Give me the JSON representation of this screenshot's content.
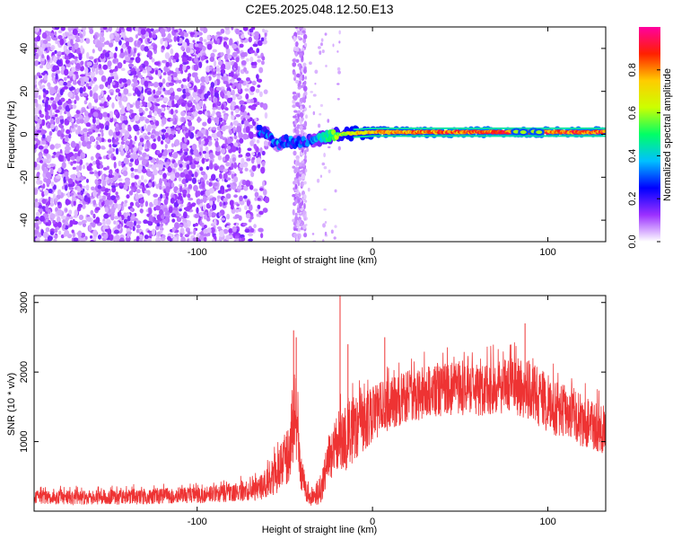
{
  "title": "C2E5.2025.048.12.50.E13",
  "chart_data": [
    {
      "type": "heatmap",
      "xlabel": "Height of straight line (km)",
      "ylabel": "Frequency (Hz)",
      "xlim": [
        -193,
        133
      ],
      "ylim": [
        -50,
        50
      ],
      "xticks": [
        -100,
        0,
        100
      ],
      "yticks": [
        -40,
        -20,
        0,
        20,
        40
      ],
      "colorbar": {
        "label": "Normalized spectral amplitude",
        "range": [
          0,
          1
        ],
        "ticks": [
          0.0,
          0.2,
          0.4,
          0.6,
          0.8
        ],
        "tick_labels": [
          "0.0",
          "0.2",
          "0.4",
          "0.6",
          "0.8"
        ],
        "colors": [
          "#ffffff",
          "#9b30ff",
          "#0000ff",
          "#00c0ff",
          "#00ff66",
          "#ccff00",
          "#ffcc00",
          "#ff2000",
          "#ff00a0"
        ]
      },
      "features": {
        "noise_region_x": [
          -193,
          -60
        ],
        "noise_strip_x": [
          -45,
          -38
        ],
        "trace": [
          {
            "x": -65,
            "y": 2,
            "amp": 0.35
          },
          {
            "x": -60,
            "y": 0,
            "amp": 0.3
          },
          {
            "x": -55,
            "y": -5,
            "amp": 0.2
          },
          {
            "x": -50,
            "y": -3,
            "amp": 0.35
          },
          {
            "x": -45,
            "y": -4,
            "amp": 0.35
          },
          {
            "x": -38,
            "y": -3,
            "amp": 0.2
          },
          {
            "x": -30,
            "y": -2,
            "amp": 0.45
          },
          {
            "x": -20,
            "y": 0,
            "amp": 0.6
          },
          {
            "x": -10,
            "y": 0.5,
            "amp": 0.75
          },
          {
            "x": 0,
            "y": 1,
            "amp": 0.8
          },
          {
            "x": 20,
            "y": 1,
            "amp": 0.85
          },
          {
            "x": 50,
            "y": 1,
            "amp": 0.9
          },
          {
            "x": 80,
            "y": 1,
            "amp": 0.92
          },
          {
            "x": 100,
            "y": 1,
            "amp": 0.9
          },
          {
            "x": 133,
            "y": 1,
            "amp": 0.9
          }
        ]
      }
    },
    {
      "type": "line",
      "xlabel": "Height of straight line (km)",
      "ylabel": "SNR (10 * v/v)",
      "xlim": [
        -193,
        133
      ],
      "ylim": [
        0,
        3100
      ],
      "xticks": [
        -100,
        0,
        100
      ],
      "yticks": [
        1000,
        2000,
        3000
      ],
      "color": "#ee3333",
      "envelope": [
        {
          "x": -193,
          "mean": 200,
          "spread": 100
        },
        {
          "x": -150,
          "mean": 200,
          "spread": 110
        },
        {
          "x": -100,
          "mean": 230,
          "spread": 120
        },
        {
          "x": -80,
          "mean": 260,
          "spread": 130
        },
        {
          "x": -65,
          "mean": 320,
          "spread": 170
        },
        {
          "x": -55,
          "mean": 520,
          "spread": 280
        },
        {
          "x": -48,
          "mean": 800,
          "spread": 400
        },
        {
          "x": -44,
          "mean": 1450,
          "spread": 650
        },
        {
          "x": -40,
          "mean": 450,
          "spread": 250
        },
        {
          "x": -36,
          "mean": 180,
          "spread": 110
        },
        {
          "x": -30,
          "mean": 300,
          "spread": 200
        },
        {
          "x": -25,
          "mean": 700,
          "spread": 400
        },
        {
          "x": -20,
          "mean": 1000,
          "spread": 450
        },
        {
          "x": -15,
          "mean": 1100,
          "spread": 550
        },
        {
          "x": -10,
          "mean": 1250,
          "spread": 500
        },
        {
          "x": -5,
          "mean": 1300,
          "spread": 450
        },
        {
          "x": 0,
          "mean": 1400,
          "spread": 400
        },
        {
          "x": 20,
          "mean": 1650,
          "spread": 380
        },
        {
          "x": 40,
          "mean": 1750,
          "spread": 380
        },
        {
          "x": 60,
          "mean": 1750,
          "spread": 380
        },
        {
          "x": 80,
          "mean": 1800,
          "spread": 400
        },
        {
          "x": 90,
          "mean": 1750,
          "spread": 450
        },
        {
          "x": 100,
          "mean": 1550,
          "spread": 420
        },
        {
          "x": 110,
          "mean": 1400,
          "spread": 400
        },
        {
          "x": 120,
          "mean": 1300,
          "spread": 380
        },
        {
          "x": 133,
          "mean": 1150,
          "spread": 350
        }
      ],
      "spikes": [
        {
          "x": -45,
          "y": 2600
        },
        {
          "x": -43.5,
          "y": 2500
        },
        {
          "x": -18.5,
          "y": 3100
        },
        {
          "x": -14,
          "y": 2400
        },
        {
          "x": 7,
          "y": 2500
        },
        {
          "x": 87,
          "y": 2700
        },
        {
          "x": 86,
          "y": 1000
        }
      ]
    }
  ]
}
